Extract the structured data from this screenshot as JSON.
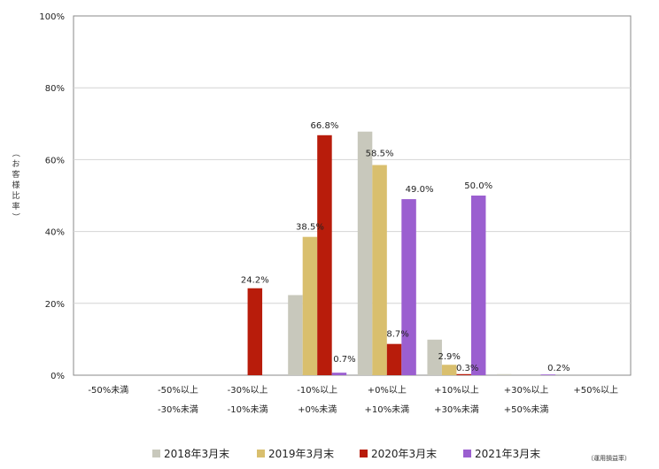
{
  "chart_data": {
    "type": "bar",
    "title": "",
    "xlabel": "",
    "ylabel": "（お客様比率）",
    "ylim": [
      0,
      100
    ],
    "yticks": [
      "0%",
      "20%",
      "40%",
      "60%",
      "80%",
      "100%"
    ],
    "grid": true,
    "legend_position": "bottom",
    "note": "（運用損益率）",
    "categories": [
      [
        "-50%未満"
      ],
      [
        "-50%以上",
        "-30%未満"
      ],
      [
        "-30%以上",
        "-10%未満"
      ],
      [
        "-10%以上",
        "+0%未満"
      ],
      [
        "+0%以上",
        "+10%未満"
      ],
      [
        "+10%以上",
        "+30%未満"
      ],
      [
        "+30%以上",
        "+50%未満"
      ],
      [
        "+50%以上"
      ]
    ],
    "series": [
      {
        "name": "2018年3月末",
        "color": "#c8c8bc",
        "values": [
          0,
          0,
          0,
          22.3,
          67.8,
          9.9,
          0.3,
          0
        ],
        "labels": [
          null,
          null,
          null,
          null,
          null,
          null,
          null,
          null
        ]
      },
      {
        "name": "2019年3月末",
        "color": "#d9bf6e",
        "values": [
          0,
          0,
          0,
          38.5,
          58.5,
          2.9,
          0,
          0
        ],
        "labels": [
          null,
          null,
          null,
          "38.5%",
          "58.5%",
          "2.9%",
          null,
          null
        ]
      },
      {
        "name": "2020年3月末",
        "color": "#b81c0b",
        "values": [
          0,
          0,
          24.2,
          66.8,
          8.7,
          0.3,
          0,
          0
        ],
        "labels": [
          null,
          null,
          "24.2%",
          "66.8%",
          "8.7%",
          "0.3%",
          null,
          null
        ]
      },
      {
        "name": "2021年3月末",
        "color": "#9b5fd0",
        "values": [
          0,
          0,
          0,
          0.7,
          49.0,
          50.0,
          0.2,
          0
        ],
        "labels": [
          null,
          null,
          null,
          "0.7%",
          "49.0%",
          "50.0%",
          "0.2%",
          null
        ]
      }
    ]
  }
}
